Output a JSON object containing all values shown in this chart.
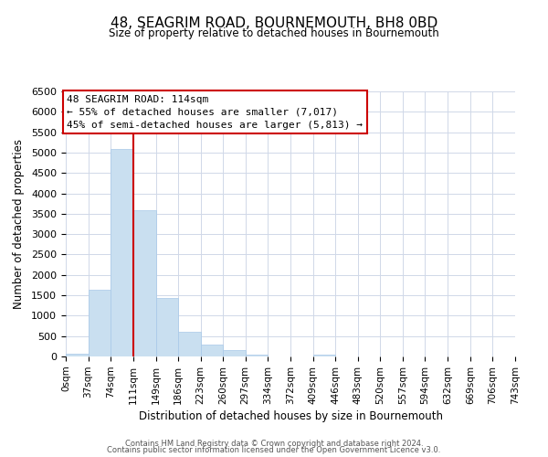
{
  "title": "48, SEAGRIM ROAD, BOURNEMOUTH, BH8 0BD",
  "subtitle": "Size of property relative to detached houses in Bournemouth",
  "xlabel": "Distribution of detached houses by size in Bournemouth",
  "ylabel": "Number of detached properties",
  "bin_edges": [
    0,
    37,
    74,
    111,
    149,
    186,
    223,
    260,
    297,
    334,
    372,
    409,
    446,
    483,
    520,
    557,
    594,
    632,
    669,
    706,
    743
  ],
  "bin_counts": [
    70,
    1630,
    5080,
    3590,
    1430,
    610,
    300,
    150,
    50,
    0,
    0,
    50,
    0,
    0,
    0,
    0,
    0,
    0,
    0,
    0
  ],
  "bar_color": "#c9dff0",
  "bar_edge_color": "#a8c8e8",
  "vline_x": 111,
  "vline_color": "#cc0000",
  "ylim": [
    0,
    6500
  ],
  "yticks": [
    0,
    500,
    1000,
    1500,
    2000,
    2500,
    3000,
    3500,
    4000,
    4500,
    5000,
    5500,
    6000,
    6500
  ],
  "annotation_title": "48 SEAGRIM ROAD: 114sqm",
  "annotation_line1": "← 55% of detached houses are smaller (7,017)",
  "annotation_line2": "45% of semi-detached houses are larger (5,813) →",
  "annotation_box_color": "#cc0000",
  "footer1": "Contains HM Land Registry data © Crown copyright and database right 2024.",
  "footer2": "Contains public sector information licensed under the Open Government Licence v3.0.",
  "tick_labels": [
    "0sqm",
    "37sqm",
    "74sqm",
    "111sqm",
    "149sqm",
    "186sqm",
    "223sqm",
    "260sqm",
    "297sqm",
    "334sqm",
    "372sqm",
    "409sqm",
    "446sqm",
    "483sqm",
    "520sqm",
    "557sqm",
    "594sqm",
    "632sqm",
    "669sqm",
    "706sqm",
    "743sqm"
  ]
}
